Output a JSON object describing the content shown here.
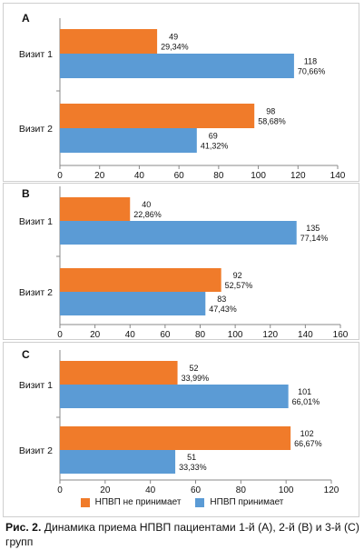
{
  "colors": {
    "orange": "#f07b2a",
    "blue": "#5b9bd5",
    "axis": "#888888",
    "grid": "#d9d9d9"
  },
  "legend": {
    "series0": "НПВП не принимает",
    "series1": "НПВП принимает"
  },
  "caption": {
    "lead": "Рис. 2.",
    "text": " Динамика приема НПВП пациентами 1-й (А), 2-й (В) и 3-й (С) групп"
  },
  "chart_data": [
    {
      "type": "bar",
      "orientation": "horizontal",
      "panel_label": "A",
      "categories": [
        "Визит 1",
        "Визит 2"
      ],
      "series": [
        {
          "name": "НПВП не принимает",
          "values": [
            49,
            98
          ],
          "labels": [
            "29,34%",
            "58,68%"
          ]
        },
        {
          "name": "НПВП принимает",
          "values": [
            118,
            69
          ],
          "labels": [
            "70,66%",
            "41,32%"
          ]
        }
      ],
      "xlim": [
        0,
        140
      ],
      "xticks": [
        0,
        20,
        40,
        60,
        80,
        100,
        120,
        140
      ],
      "grid": false
    },
    {
      "type": "bar",
      "orientation": "horizontal",
      "panel_label": "B",
      "categories": [
        "Визит 1",
        "Визит 2"
      ],
      "series": [
        {
          "name": "НПВП не принимает",
          "values": [
            40,
            92
          ],
          "labels": [
            "22,86%",
            "52,57%"
          ]
        },
        {
          "name": "НПВП принимает",
          "values": [
            135,
            83
          ],
          "labels": [
            "77,14%",
            "47,43%"
          ]
        }
      ],
      "xlim": [
        0,
        160
      ],
      "xticks": [
        0,
        20,
        40,
        60,
        80,
        100,
        120,
        140,
        160
      ],
      "grid": false
    },
    {
      "type": "bar",
      "orientation": "horizontal",
      "panel_label": "C",
      "categories": [
        "Визит 1",
        "Визит 2"
      ],
      "series": [
        {
          "name": "НПВП не принимает",
          "values": [
            52,
            102
          ],
          "labels": [
            "33,99%",
            "66,67%"
          ]
        },
        {
          "name": "НПВП принимает",
          "values": [
            101,
            51
          ],
          "labels": [
            "66,01%",
            "33,33%"
          ]
        }
      ],
      "xlim": [
        0,
        120
      ],
      "xticks": [
        0,
        20,
        40,
        60,
        80,
        100,
        120
      ],
      "grid": false,
      "legend": "bottom-center"
    }
  ]
}
